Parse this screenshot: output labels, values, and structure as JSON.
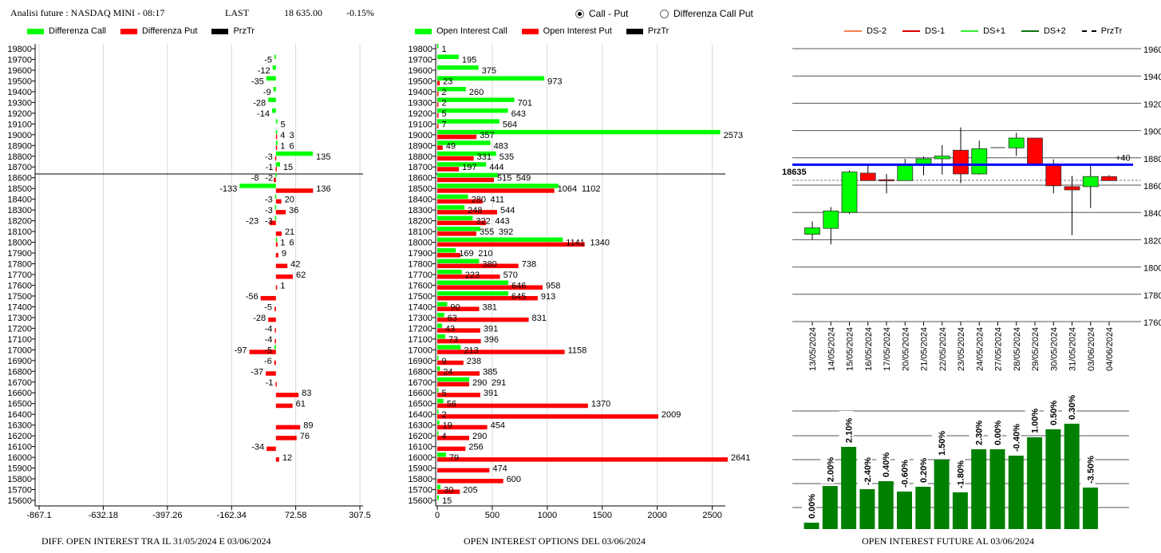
{
  "header": {
    "title": "Analisi future : NASDAQ MINI - 08:17",
    "last_label": "LAST",
    "last_value": "18 635.00",
    "change": "-0.15%"
  },
  "radio": {
    "options": [
      {
        "label": "Call - Put",
        "selected": true
      },
      {
        "label": "Differenza Call Put",
        "selected": false
      }
    ]
  },
  "colors": {
    "call": "#00ff00",
    "put": "#ff0000",
    "przTr": "#000000",
    "blue_line": "#0000ff",
    "oi_bar": "#008000",
    "ds_minus2": "#f08050",
    "ds_minus1": "#e00000",
    "ds_plus1": "#33ee33",
    "ds_plus2": "#107010"
  },
  "chart_data": [
    {
      "type": "bar",
      "orientation": "horizontal",
      "title": "DIFF. OPEN INTEREST TRA IL 31/05/2024 E 03/06/2024",
      "legend": [
        "Differenza Call",
        "Differenza Put",
        "PrzTr"
      ],
      "legend_placement": "top-left",
      "categories": [
        19800,
        19700,
        19600,
        19500,
        19400,
        19300,
        19200,
        19100,
        19000,
        18900,
        18800,
        18700,
        18600,
        18500,
        18400,
        18300,
        18200,
        18100,
        18000,
        17900,
        17800,
        17700,
        17600,
        17500,
        17400,
        17300,
        17200,
        17100,
        17000,
        16900,
        16800,
        16700,
        16600,
        16500,
        16400,
        16300,
        16200,
        16100,
        16000,
        15900,
        15800,
        15700,
        15600
      ],
      "series": [
        {
          "name": "Differenza Call",
          "values": [
            null,
            -5,
            -12,
            -35,
            -9,
            -28,
            -14,
            5,
            4,
            6,
            135,
            15,
            -2,
            -133,
            -3,
            -3,
            -3,
            null,
            1,
            null,
            null,
            null,
            null,
            null,
            null,
            null,
            null,
            null,
            -5,
            null,
            null,
            null,
            null,
            null,
            null,
            null,
            null,
            null,
            null,
            null,
            null,
            null,
            null
          ]
        },
        {
          "name": "Differenza Put",
          "values": [
            null,
            null,
            null,
            null,
            null,
            null,
            null,
            null,
            3,
            1,
            -3,
            -1,
            -8,
            136,
            20,
            36,
            -23,
            21,
            6,
            9,
            42,
            62,
            1,
            -56,
            -5,
            -28,
            -4,
            -4,
            -97,
            -6,
            -37,
            -1,
            83,
            61,
            null,
            89,
            76,
            -34,
            12,
            null,
            null,
            null,
            null
          ]
        }
      ],
      "przTr": 18635,
      "xticks": [
        "-867.1",
        "-632.18",
        "-397.26",
        "-162.34",
        "72.58",
        "307.5"
      ],
      "xlim": [
        -867.1,
        307.5
      ],
      "grid": true
    },
    {
      "type": "bar",
      "orientation": "horizontal",
      "title": "OPEN INTEREST OPTIONS DEL 03/06/2024",
      "legend": [
        "Open Interest Call",
        "Open Interest Put",
        "PrzTr"
      ],
      "legend_placement": "top-left",
      "categories": [
        19800,
        19700,
        19600,
        19500,
        19400,
        19300,
        19200,
        19100,
        19000,
        18900,
        18800,
        18700,
        18600,
        18500,
        18400,
        18300,
        18200,
        18100,
        18000,
        17900,
        17800,
        17700,
        17600,
        17500,
        17400,
        17300,
        17200,
        17100,
        17000,
        16900,
        16800,
        16700,
        16600,
        16500,
        16400,
        16300,
        16200,
        16100,
        16000,
        15900,
        15800,
        15700,
        15600
      ],
      "series": [
        {
          "name": "Open Interest Call",
          "values": [
            1,
            195,
            375,
            973,
            260,
            701,
            643,
            564,
            2573,
            483,
            535,
            444,
            549,
            1102,
            280,
            248,
            322,
            392,
            1141,
            169,
            380,
            223,
            646,
            645,
            90,
            63,
            43,
            73,
            213,
            9,
            24,
            291,
            5,
            56,
            2,
            19,
            4,
            null,
            79,
            null,
            null,
            30,
            15
          ]
        },
        {
          "name": "Open Interest Put",
          "values": [
            null,
            null,
            null,
            23,
            2,
            2,
            5,
            7,
            357,
            49,
            331,
            197,
            515,
            1064,
            411,
            544,
            443,
            355,
            1340,
            210,
            738,
            570,
            958,
            913,
            381,
            831,
            391,
            396,
            1158,
            238,
            385,
            290,
            391,
            1370,
            2009,
            454,
            290,
            256,
            2641,
            474,
            600,
            205,
            null
          ]
        }
      ],
      "przTr": 18635,
      "xticks": [
        "0",
        "500",
        "1000",
        "1500",
        "2000",
        "2500"
      ],
      "xlim": [
        0,
        2590
      ],
      "grid": true
    },
    {
      "type": "candlestick",
      "legend": [
        "DS-2",
        "DS-1",
        "DS+1",
        "DS+2",
        "PrzTr"
      ],
      "legend_placement": "top",
      "dates": [
        "13/05/2024",
        "14/05/2024",
        "15/05/2024",
        "16/05/2024",
        "17/05/2024",
        "20/05/2024",
        "21/05/2024",
        "22/05/2024",
        "23/05/2024",
        "24/05/2024",
        "27/05/2024",
        "28/05/2024",
        "29/05/2024",
        "30/05/2024",
        "31/05/2024",
        "03/06/2024",
        "04/06/2024"
      ],
      "open": [
        18240,
        18283,
        18400,
        18688,
        18640,
        18633,
        18750,
        18793,
        18856,
        18682,
        18875,
        18873,
        18945,
        18750,
        18589,
        18589,
        18663
      ],
      "close": [
        18287,
        18411,
        18696,
        18633,
        18635,
        18747,
        18793,
        18813,
        18682,
        18867,
        18875,
        18945,
        18750,
        18595,
        18565,
        18663,
        18633
      ],
      "high": [
        18334,
        18439,
        18708,
        18747,
        18682,
        18793,
        18809,
        18893,
        19023,
        18926,
        18875,
        18984,
        18945,
        18789,
        18668,
        18747,
        18673
      ],
      "low": [
        18201,
        18166,
        18388,
        18633,
        18540,
        18633,
        18673,
        18678,
        18614,
        18677,
        18875,
        18815,
        18741,
        18540,
        18234,
        18433,
        18633
      ],
      "yticks": [
        19600,
        19400,
        19200,
        19000,
        18800,
        18600,
        18400,
        18200,
        18000,
        17800,
        17600
      ],
      "ylim": [
        17600,
        19600
      ],
      "blue_level": 18750,
      "przTr": 18635,
      "przTr_label": "18635",
      "offset_label": "+40",
      "grid": true
    },
    {
      "type": "bar",
      "title": "OPEN INTEREST FUTURE AL 03/06/2024",
      "labels": [
        "0.00%",
        "2.00%",
        "2.10%",
        "-2.40%",
        "0.40%",
        "-0.60%",
        "0.20%",
        "1.50%",
        "-1.80%",
        "2.30%",
        "0.00%",
        "-0.40%",
        "1.00%",
        "0.50%",
        "0.30%",
        "-3.50%"
      ],
      "values": [
        8,
        54,
        103,
        50,
        60,
        47,
        53,
        87,
        46,
        100,
        100,
        92,
        115,
        125,
        132,
        52
      ],
      "grid": true
    }
  ]
}
